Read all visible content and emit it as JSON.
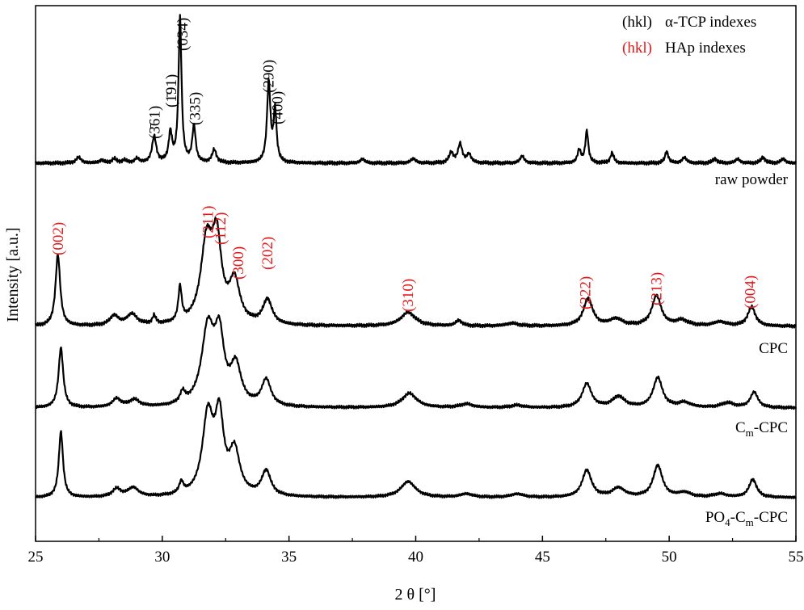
{
  "chart_data": {
    "type": "line",
    "xlabel": "2 θ [°]",
    "ylabel": "Intensity [a.u.]",
    "xlim": [
      25,
      55
    ],
    "xticks": [
      25,
      30,
      35,
      40,
      45,
      50,
      55
    ],
    "grid": false,
    "legend": {
      "placement": "top-right",
      "entries": [
        {
          "key": "(hkl)",
          "text": "α-TCP indexes",
          "color": "#000000"
        },
        {
          "key": "(hkl)",
          "text": "HAp indexes",
          "color": "#e31a1c"
        }
      ]
    },
    "series": [
      {
        "name": "raw powder",
        "baseline": 0,
        "peaks": [
          [
            26.7,
            4,
            0.12
          ],
          [
            27.6,
            2,
            0.1
          ],
          [
            28.1,
            3,
            0.1
          ],
          [
            28.5,
            2,
            0.1
          ],
          [
            29.0,
            3,
            0.1
          ],
          [
            29.68,
            18,
            0.1
          ],
          [
            30.32,
            20,
            0.08
          ],
          [
            30.7,
            100,
            0.07
          ],
          [
            31.25,
            25,
            0.08
          ],
          [
            32.05,
            9,
            0.1
          ],
          [
            34.2,
            55,
            0.08
          ],
          [
            34.45,
            35,
            0.07
          ],
          [
            37.9,
            3,
            0.1
          ],
          [
            39.9,
            3,
            0.12
          ],
          [
            41.4,
            7,
            0.1
          ],
          [
            41.75,
            13,
            0.1
          ],
          [
            42.1,
            6,
            0.1
          ],
          [
            44.2,
            5,
            0.1
          ],
          [
            46.45,
            9,
            0.08
          ],
          [
            46.75,
            22,
            0.07
          ],
          [
            47.75,
            7,
            0.08
          ],
          [
            49.9,
            8,
            0.08
          ],
          [
            50.6,
            4,
            0.1
          ],
          [
            51.8,
            3,
            0.1
          ],
          [
            52.7,
            3,
            0.1
          ],
          [
            53.7,
            4,
            0.1
          ],
          [
            54.5,
            3,
            0.1
          ]
        ]
      },
      {
        "name": "CPC",
        "baseline": 0,
        "peaks": [
          [
            25.88,
            52,
            0.11
          ],
          [
            28.1,
            7,
            0.2
          ],
          [
            28.8,
            8,
            0.25
          ],
          [
            29.68,
            6,
            0.08
          ],
          [
            30.7,
            25,
            0.08
          ],
          [
            31.75,
            58,
            0.28
          ],
          [
            32.15,
            55,
            0.22
          ],
          [
            32.85,
            30,
            0.25
          ],
          [
            34.15,
            18,
            0.22
          ],
          [
            39.7,
            10,
            0.35
          ],
          [
            41.7,
            4,
            0.15
          ],
          [
            43.8,
            2,
            0.3
          ],
          [
            46.8,
            20,
            0.22
          ],
          [
            47.9,
            5,
            0.3
          ],
          [
            49.5,
            22,
            0.22
          ],
          [
            50.5,
            4,
            0.3
          ],
          [
            52.0,
            3,
            0.3
          ],
          [
            53.25,
            14,
            0.18
          ]
        ]
      },
      {
        "name": "Cm-CPC",
        "baseline": 0,
        "peaks": [
          [
            26.0,
            50,
            0.11
          ],
          [
            28.2,
            7,
            0.2
          ],
          [
            28.9,
            6,
            0.25
          ],
          [
            30.8,
            9,
            0.12
          ],
          [
            31.8,
            64,
            0.3
          ],
          [
            32.25,
            52,
            0.22
          ],
          [
            32.9,
            32,
            0.25
          ],
          [
            34.1,
            22,
            0.22
          ],
          [
            39.75,
            12,
            0.35
          ],
          [
            42.0,
            3,
            0.3
          ],
          [
            44.0,
            2,
            0.3
          ],
          [
            46.75,
            20,
            0.22
          ],
          [
            48.0,
            9,
            0.3
          ],
          [
            49.55,
            25,
            0.22
          ],
          [
            50.6,
            4,
            0.3
          ],
          [
            52.3,
            4,
            0.3
          ],
          [
            53.35,
            13,
            0.18
          ]
        ]
      },
      {
        "name": "PO4-Cm-CPC",
        "baseline": 0,
        "peaks": [
          [
            26.0,
            58,
            0.1
          ],
          [
            28.2,
            7,
            0.2
          ],
          [
            28.85,
            8,
            0.25
          ],
          [
            30.75,
            10,
            0.1
          ],
          [
            31.8,
            70,
            0.26
          ],
          [
            32.25,
            64,
            0.2
          ],
          [
            32.85,
            38,
            0.25
          ],
          [
            34.1,
            22,
            0.22
          ],
          [
            39.7,
            14,
            0.35
          ],
          [
            42.0,
            3,
            0.3
          ],
          [
            44.0,
            3,
            0.3
          ],
          [
            46.75,
            24,
            0.22
          ],
          [
            48.0,
            8,
            0.3
          ],
          [
            49.55,
            28,
            0.22
          ],
          [
            50.6,
            4,
            0.3
          ],
          [
            52.0,
            3,
            0.3
          ],
          [
            53.3,
            16,
            0.18
          ]
        ]
      }
    ],
    "annotations": {
      "tcp": [
        {
          "text": "(3̄61)",
          "x": 29.7
        },
        {
          "text": "(1̄91)",
          "x": 30.35
        },
        {
          "text": "(034)",
          "x": 30.8
        },
        {
          "text": "(335)",
          "x": 31.3
        },
        {
          "text": "(290)",
          "x": 34.2
        },
        {
          "text": "(400)",
          "x": 34.55
        }
      ],
      "hap": [
        {
          "text": "(002)",
          "x": 25.9
        },
        {
          "text": "(211)",
          "x": 31.8
        },
        {
          "text": "(112)",
          "x": 32.3
        },
        {
          "text": "(300)",
          "x": 33.0
        },
        {
          "text": "(202)",
          "x": 34.15
        },
        {
          "text": "(310)",
          "x": 39.7
        },
        {
          "text": "(222)",
          "x": 46.7
        },
        {
          "text": "(213)",
          "x": 49.5
        },
        {
          "text": "(004)",
          "x": 53.2
        }
      ]
    },
    "colors": {
      "tcp_label": "#000000",
      "hap_label": "#e31a1c",
      "line": "#000000"
    }
  }
}
